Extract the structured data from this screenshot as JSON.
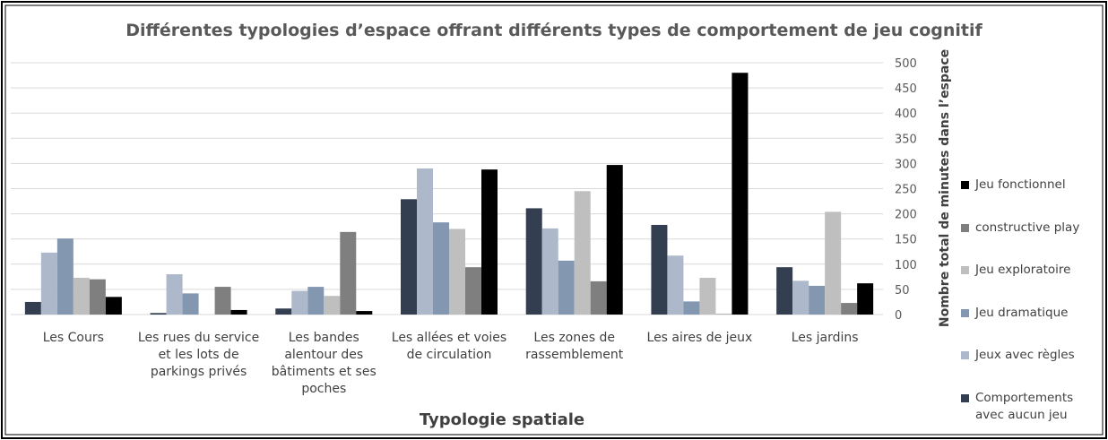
{
  "chart_data": {
    "type": "bar",
    "title": "Différentes typologies d’espace offrant différents types de comportement de jeu cognitif",
    "x_label": "Typologie spatiale",
    "y_label": "Nombre total de minutes dans l’espace",
    "categories": [
      "Les Cours",
      "Les rues du service et les lots de parkings privés",
      "Les bandes alentour des bâtiments et ses poches",
      "Les allées et voies de circulation",
      "Les zones de rassemblement",
      "Les aires de jeux",
      "Les jardins"
    ],
    "series": [
      {
        "name": "Comportements avec aucun jeu",
        "color": "#333f50",
        "values": [
          25,
          3,
          12,
          229,
          211,
          178,
          94
        ]
      },
      {
        "name": "Jeux avec règles",
        "color": "#adb9ca",
        "values": [
          123,
          80,
          47,
          290,
          171,
          117,
          67
        ]
      },
      {
        "name": "Jeu dramatique",
        "color": "#8497b0",
        "values": [
          151,
          42,
          55,
          183,
          107,
          26,
          57
        ]
      },
      {
        "name": "Jeu exploratoire",
        "color": "#bfbfbf",
        "values": [
          73,
          0,
          37,
          170,
          245,
          73,
          204
        ]
      },
      {
        "name": "constructive play",
        "color": "#7f7f7f",
        "values": [
          70,
          55,
          164,
          94,
          66,
          1,
          23
        ]
      },
      {
        "name": "Jeu fonctionnel",
        "color": "#000000",
        "values": [
          35,
          9,
          7,
          288,
          297,
          480,
          62
        ]
      }
    ],
    "ylim": [
      0,
      500
    ],
    "yticks": [
      0,
      50,
      100,
      150,
      200,
      250,
      300,
      350,
      400,
      450,
      500
    ],
    "grid": true,
    "legend": "right"
  }
}
